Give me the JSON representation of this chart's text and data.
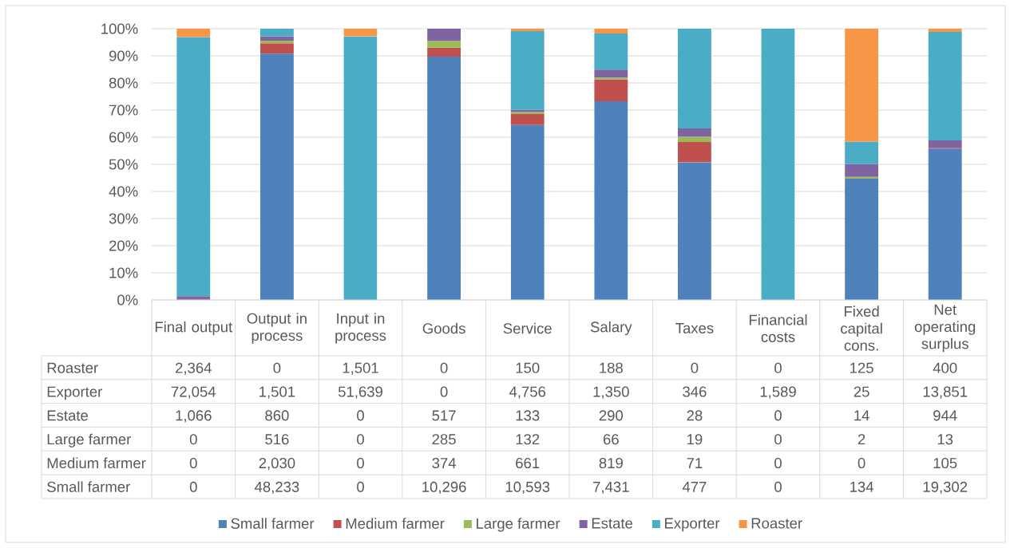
{
  "chart_data": {
    "type": "bar",
    "stacked": true,
    "legend": "bottom",
    "grid": "y",
    "categories": [
      "Final output",
      "Output in process",
      "Input in process",
      "Goods",
      "Service",
      "Salary",
      "Taxes",
      "Financial costs",
      "Fixed capital cons.",
      "Net operating surplus"
    ],
    "ylim": [
      0,
      100
    ],
    "yticks": [
      {
        "value": 0,
        "label": "0%"
      },
      {
        "value": 10,
        "label": "10%"
      },
      {
        "value": 20,
        "label": "20%"
      },
      {
        "value": 30,
        "label": "30%"
      },
      {
        "value": 40,
        "label": "40%"
      },
      {
        "value": 50,
        "label": "50%"
      },
      {
        "value": 60,
        "label": "60%"
      },
      {
        "value": 70,
        "label": "70%"
      },
      {
        "value": 80,
        "label": "80%"
      },
      {
        "value": 90,
        "label": "90%"
      },
      {
        "value": 100,
        "label": "100%"
      }
    ],
    "series": [
      {
        "name": "Small farmer",
        "color": "#4f81bd",
        "values": [
          0,
          90.8,
          0,
          89.7,
          64.5,
          73.2,
          50.7,
          0,
          44.7,
          55.8
        ]
      },
      {
        "name": "Medium farmer",
        "color": "#c0504d",
        "values": [
          0,
          3.8,
          0,
          3.3,
          4.0,
          8.1,
          7.5,
          0,
          0,
          0.3
        ]
      },
      {
        "name": "Large farmer",
        "color": "#9bbb59",
        "values": [
          0,
          1.0,
          0,
          2.5,
          0.8,
          0.7,
          2.0,
          0,
          0.7,
          0
        ]
      },
      {
        "name": "Estate",
        "color": "#8064a2",
        "values": [
          1.4,
          1.6,
          0,
          4.5,
          0.8,
          2.9,
          3.0,
          0,
          4.7,
          2.7
        ]
      },
      {
        "name": "Exporter",
        "color": "#4bacc6",
        "values": [
          95.5,
          2.8,
          97.2,
          0,
          29.0,
          13.3,
          36.8,
          100,
          8.3,
          40.0
        ]
      },
      {
        "name": "Roaster",
        "color": "#f79646",
        "values": [
          3.1,
          0,
          2.8,
          0,
          0.9,
          1.8,
          0,
          0,
          41.6,
          1.2
        ]
      }
    ],
    "annotations": [
      "2,364",
      "0",
      "1,501",
      "0",
      "150",
      "188",
      "0",
      "0",
      "125",
      "400",
      "72,054",
      "1,501",
      "51,639",
      "0",
      "4,756",
      "1,350",
      "346",
      "1,589",
      "25",
      "13,851",
      "1,066",
      "860",
      "0",
      "517",
      "133",
      "290",
      "28",
      "0",
      "14",
      "944",
      "0",
      "516",
      "0",
      "285",
      "132",
      "66",
      "19",
      "0",
      "2",
      "13",
      "0",
      "2,030",
      "0",
      "374",
      "661",
      "819",
      "71",
      "0",
      "0",
      "105",
      "0",
      "48,233",
      "0",
      "10,296",
      "10,593",
      "7,431",
      "477",
      "0",
      "134",
      "19,302"
    ]
  }
}
